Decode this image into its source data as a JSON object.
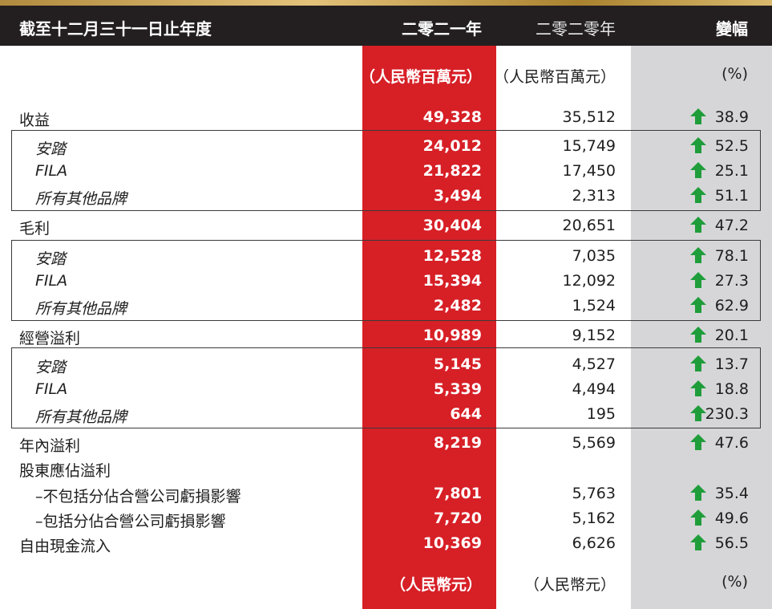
{
  "header": {
    "label": "截至十二月三十一日止年度",
    "y2021": "二零二一年",
    "y2020": "二零二零年",
    "change": "變幅"
  },
  "units_top": {
    "y2021": "（人民幣百萬元）",
    "y2020": "（人民幣百萬元）",
    "pct": "(%)"
  },
  "units_bottom": {
    "y2021": "（人民幣元）",
    "y2020": "（人民幣元）",
    "pct": "(%)"
  },
  "rows": [
    {
      "label": "收益",
      "v2021": "49,328",
      "v2020": "35,512",
      "change": "38.9"
    },
    {
      "label": "安踏",
      "v2021": "24,012",
      "v2020": "15,749",
      "change": "52.5"
    },
    {
      "label": "FILA",
      "v2021": "21,822",
      "v2020": "17,450",
      "change": "25.1"
    },
    {
      "label": "所有其他品牌",
      "v2021": "3,494",
      "v2020": "2,313",
      "change": "51.1"
    },
    {
      "label": "毛利",
      "v2021": "30,404",
      "v2020": "20,651",
      "change": "47.2"
    },
    {
      "label": "安踏",
      "v2021": "12,528",
      "v2020": "7,035",
      "change": "78.1"
    },
    {
      "label": "FILA",
      "v2021": "15,394",
      "v2020": "12,092",
      "change": "27.3"
    },
    {
      "label": "所有其他品牌",
      "v2021": "2,482",
      "v2020": "1,524",
      "change": "62.9"
    },
    {
      "label": "經營溢利",
      "v2021": "10,989",
      "v2020": "9,152",
      "change": "20.1"
    },
    {
      "label": "安踏",
      "v2021": "5,145",
      "v2020": "4,527",
      "change": "13.7"
    },
    {
      "label": "FILA",
      "v2021": "5,339",
      "v2020": "4,494",
      "change": "18.8"
    },
    {
      "label": "所有其他品牌",
      "v2021": "644",
      "v2020": "195",
      "change": "230.3"
    },
    {
      "label": "年內溢利",
      "v2021": "8,219",
      "v2020": "5,569",
      "change": "47.6"
    },
    {
      "label": "股東應佔溢利",
      "v2021": "",
      "v2020": "",
      "change": ""
    },
    {
      "label": "–不包括分佔合營公司虧損影響",
      "v2021": "7,801",
      "v2020": "5,763",
      "change": "35.4"
    },
    {
      "label": "–包括分佔合營公司虧損影響",
      "v2021": "7,720",
      "v2020": "5,162",
      "change": "49.6"
    },
    {
      "label": "自由現金流入",
      "v2021": "10,369",
      "v2020": "6,626",
      "change": "56.5"
    }
  ],
  "colors": {
    "red_band": "#d71f26",
    "grey_band": "#d6d6d8",
    "header_bg": "#231f20",
    "arrow": "#1f9d3a"
  },
  "icons": {
    "increase": "green-up-arrow-icon"
  }
}
